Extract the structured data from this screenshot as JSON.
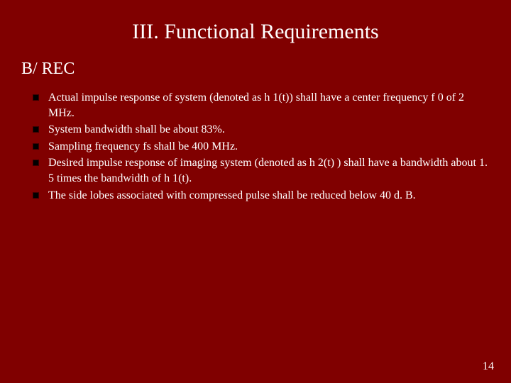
{
  "background_color": "#800000",
  "text_color": "#ffffff",
  "bullet_color": "#000000",
  "font_family": "Times New Roman",
  "title": "III. Functional Requirements",
  "title_fontsize": 30,
  "subheading": "B/ REC",
  "subheading_fontsize": 24,
  "body_fontsize": 16,
  "bullets": [
    "Actual impulse response of system (denoted as h 1(t)) shall have a center frequency f 0 of 2 MHz.",
    "System bandwidth shall be about 83%.",
    "Sampling frequency fs shall be 400 MHz.",
    "Desired impulse response of imaging system (denoted as h 2(t) ) shall have a bandwidth about 1. 5 times the bandwidth of h 1(t).",
    "The side lobes associated with compressed pulse shall be reduced below 40 d. B."
  ],
  "page_number": "14"
}
